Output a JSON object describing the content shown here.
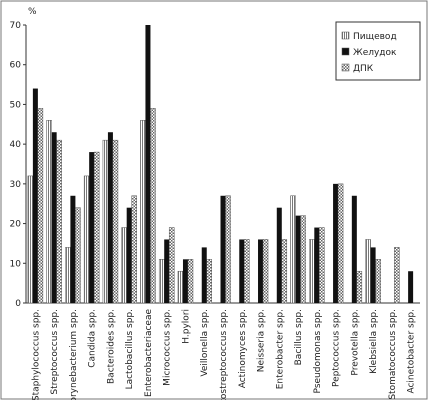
{
  "chart_data": {
    "type": "bar",
    "y_label": "%",
    "categories": [
      "Staphylococcus spp.",
      "Streptococcus spp.",
      "Corynebacterium spp.",
      "Candida spp.",
      "Bacteroides spp.",
      "Lactobacillus spp.",
      "Enterobacteriaceae",
      "Micrococcus spp.",
      "H.pylori",
      "Veillonella spp.",
      "Peptostreptococcus spp.",
      "Actinomyces spp.",
      "Neisseria spp.",
      "Enterobacter spp.",
      "Bacillus spp.",
      "Pseudomonas spp.",
      "Peptococcus spp.",
      "Prevotella spp.",
      "Klebsiella spp.",
      "Stomatococcus spp.",
      "Acinetobacter spp."
    ],
    "series": [
      {
        "name": "Пищевод",
        "color": "#ffffff",
        "pattern": "vertical-lines",
        "values": [
          32,
          46,
          14,
          32,
          41,
          19,
          46,
          11,
          8,
          0,
          0,
          0,
          0,
          0,
          27,
          16,
          0,
          0,
          16,
          0,
          0
        ]
      },
      {
        "name": "Желудок",
        "color": "#111111",
        "pattern": "solid",
        "values": [
          54,
          43,
          27,
          38,
          43,
          24,
          70,
          16,
          11,
          14,
          27,
          16,
          16,
          24,
          22,
          19,
          30,
          27,
          14,
          0,
          8
        ]
      },
      {
        "name": "ДПК",
        "color": "#ffffff",
        "pattern": "checker",
        "values": [
          49,
          41,
          24,
          38,
          41,
          27,
          49,
          19,
          11,
          11,
          27,
          16,
          16,
          16,
          22,
          19,
          30,
          8,
          11,
          14,
          0
        ]
      }
    ],
    "ylim": [
      0,
      70
    ],
    "yticks": [
      0,
      10,
      20,
      30,
      40,
      50,
      60,
      70
    ],
    "grid": false,
    "legend": "upper-right"
  }
}
